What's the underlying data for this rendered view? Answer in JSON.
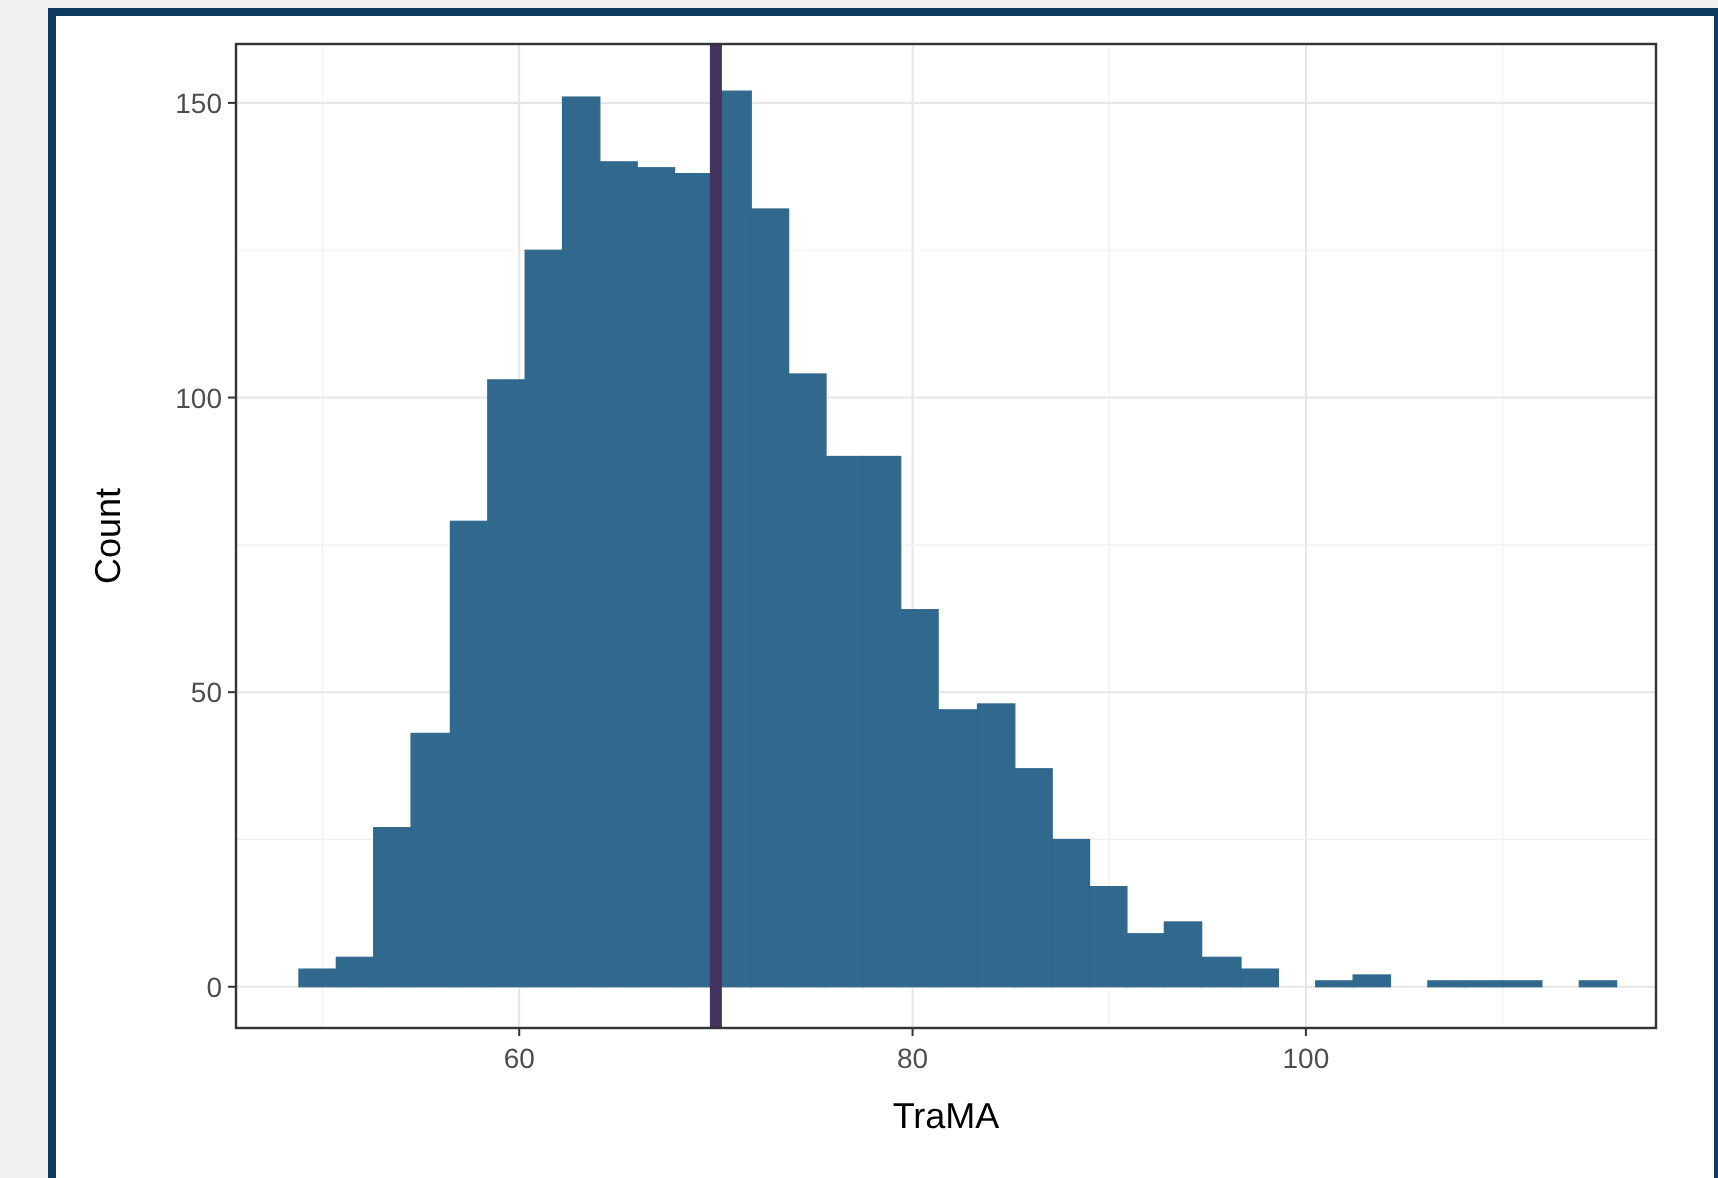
{
  "chart_data": {
    "type": "histogram",
    "xlabel": "TraMA",
    "ylabel": "Count",
    "color": "#31688e",
    "bins": [
      48.8,
      50.7,
      52.6,
      54.5,
      56.5,
      58.4,
      60.3,
      62.2,
      64.1,
      66,
      67.9,
      69.9,
      71.8,
      73.7,
      75.6,
      77.5,
      79.4,
      81.3,
      83.3,
      85.2,
      87.1,
      89,
      90.9,
      92.8,
      94.7,
      96.7,
      98.6,
      100.5,
      102.4,
      104.3,
      106.2,
      108.1,
      110,
      112,
      113.9,
      115.8
    ],
    "values": [
      3,
      5,
      27,
      43,
      79,
      103,
      125,
      151,
      140,
      139,
      138,
      152,
      132,
      104,
      90,
      90,
      64,
      47,
      48,
      37,
      25,
      17,
      9,
      11,
      5,
      3,
      0,
      1,
      2,
      0,
      1,
      1,
      1,
      0,
      1
    ],
    "xlim": [
      45.6,
      117.8
    ],
    "xticks": [
      60,
      80,
      100
    ],
    "ylim": [
      -7,
      160
    ],
    "yticks": [
      0,
      50,
      100,
      150
    ],
    "grid": true,
    "ref_lines": [
      {
        "axis": "x",
        "value": 70,
        "color": "#46325f"
      }
    ]
  }
}
